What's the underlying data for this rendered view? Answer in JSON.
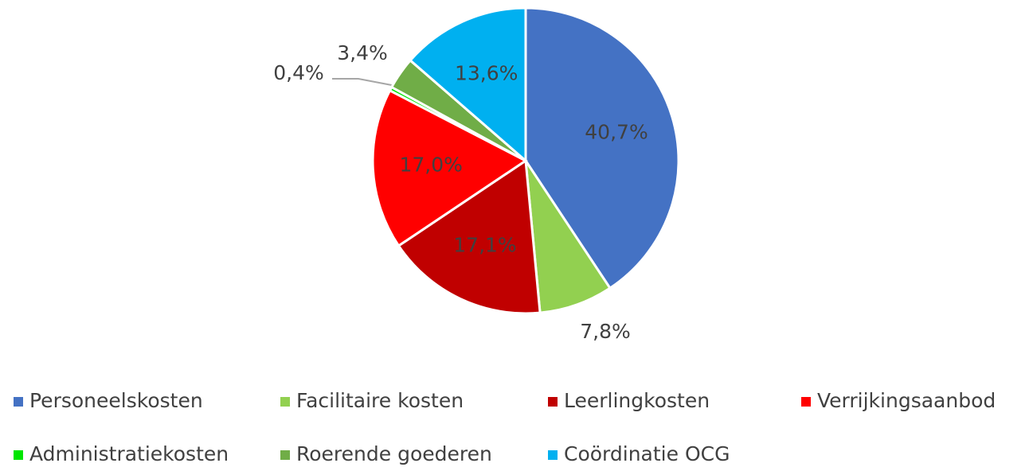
{
  "chart_data": {
    "type": "pie",
    "categories": [
      "Personeelskosten",
      "Facilitaire kosten",
      "Leerlingkosten",
      "Verrijkingsaanbod",
      "Administratiekosten",
      "Roerende goederen",
      "Coördinatie OCG"
    ],
    "values": [
      40.7,
      7.8,
      17.1,
      17.0,
      0.4,
      3.4,
      13.6
    ],
    "value_labels": [
      "40,7%",
      "7,8%",
      "17,1%",
      "17,0%",
      "0,4%",
      "3,4%",
      "13,6%"
    ],
    "colors": [
      "#4472c4",
      "#92d050",
      "#c00000",
      "#ff0000",
      "#00e600",
      "#70ad47",
      "#00b0f0"
    ],
    "legend": "bottom"
  }
}
